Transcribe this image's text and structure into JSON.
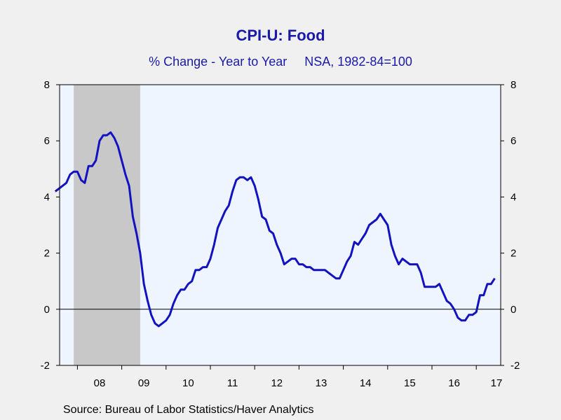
{
  "title": "CPI-U: Food",
  "subtitle": "% Change - Year to Year     NSA, 1982-84=100",
  "source": "Source:  Bureau of Labor Statistics/Haver Analytics",
  "colors": {
    "line": "#1212c0",
    "plot_bg": "#eef5ff",
    "recession": "#c8c8c8",
    "text_title": "#1a1aa8"
  },
  "chart_data": {
    "type": "line",
    "title": "CPI-U: Food",
    "subtitle": "% Change - Year to Year     NSA, 1982-84=100",
    "xlabel": "",
    "ylabel": "",
    "x_tick_labels": [
      "08",
      "09",
      "10",
      "11",
      "12",
      "13",
      "14",
      "15",
      "16",
      "17"
    ],
    "y_ticks": [
      8,
      6,
      4,
      2,
      0,
      -2
    ],
    "ylim": [
      -2,
      8
    ],
    "xlim": [
      2007.5,
      2017.0833
    ],
    "grid": false,
    "zero_line": true,
    "recession_shading": [
      {
        "start": 2007.9167,
        "end": 2009.4167
      }
    ],
    "series": [
      {
        "values": [
          [
            2007.5,
            4.2
          ],
          [
            2007.5833,
            4.3
          ],
          [
            2007.6667,
            4.4
          ],
          [
            2007.75,
            4.5
          ],
          [
            2007.8333,
            4.8
          ],
          [
            2007.9167,
            4.9
          ],
          [
            2008.0,
            4.9
          ],
          [
            2008.0833,
            4.6
          ],
          [
            2008.1667,
            4.5
          ],
          [
            2008.25,
            5.1
          ],
          [
            2008.3333,
            5.1
          ],
          [
            2008.4167,
            5.3
          ],
          [
            2008.5,
            6.0
          ],
          [
            2008.5833,
            6.2
          ],
          [
            2008.6667,
            6.2
          ],
          [
            2008.75,
            6.3
          ],
          [
            2008.8333,
            6.1
          ],
          [
            2008.9167,
            5.8
          ],
          [
            2009.0,
            5.3
          ],
          [
            2009.0833,
            4.8
          ],
          [
            2009.1667,
            4.4
          ],
          [
            2009.25,
            3.3
          ],
          [
            2009.3333,
            2.7
          ],
          [
            2009.4167,
            2.0
          ],
          [
            2009.5,
            0.9
          ],
          [
            2009.5833,
            0.3
          ],
          [
            2009.6667,
            -0.2
          ],
          [
            2009.75,
            -0.5
          ],
          [
            2009.8333,
            -0.6
          ],
          [
            2009.9167,
            -0.5
          ],
          [
            2010.0,
            -0.4
          ],
          [
            2010.0833,
            -0.2
          ],
          [
            2010.1667,
            0.2
          ],
          [
            2010.25,
            0.5
          ],
          [
            2010.3333,
            0.7
          ],
          [
            2010.4167,
            0.7
          ],
          [
            2010.5,
            0.9
          ],
          [
            2010.5833,
            1.0
          ],
          [
            2010.6667,
            1.4
          ],
          [
            2010.75,
            1.4
          ],
          [
            2010.8333,
            1.5
          ],
          [
            2010.9167,
            1.5
          ],
          [
            2011.0,
            1.8
          ],
          [
            2011.0833,
            2.3
          ],
          [
            2011.1667,
            2.9
          ],
          [
            2011.25,
            3.2
          ],
          [
            2011.3333,
            3.5
          ],
          [
            2011.4167,
            3.7
          ],
          [
            2011.5,
            4.2
          ],
          [
            2011.5833,
            4.6
          ],
          [
            2011.6667,
            4.7
          ],
          [
            2011.75,
            4.7
          ],
          [
            2011.8333,
            4.6
          ],
          [
            2011.9167,
            4.7
          ],
          [
            2012.0,
            4.4
          ],
          [
            2012.0833,
            3.9
          ],
          [
            2012.1667,
            3.3
          ],
          [
            2012.25,
            3.2
          ],
          [
            2012.3333,
            2.8
          ],
          [
            2012.4167,
            2.7
          ],
          [
            2012.5,
            2.3
          ],
          [
            2012.5833,
            2.0
          ],
          [
            2012.6667,
            1.6
          ],
          [
            2012.75,
            1.7
          ],
          [
            2012.8333,
            1.8
          ],
          [
            2012.9167,
            1.8
          ],
          [
            2013.0,
            1.6
          ],
          [
            2013.0833,
            1.6
          ],
          [
            2013.1667,
            1.5
          ],
          [
            2013.25,
            1.5
          ],
          [
            2013.3333,
            1.4
          ],
          [
            2013.4167,
            1.4
          ],
          [
            2013.5,
            1.4
          ],
          [
            2013.5833,
            1.4
          ],
          [
            2013.6667,
            1.3
          ],
          [
            2013.75,
            1.2
          ],
          [
            2013.8333,
            1.1
          ],
          [
            2013.9167,
            1.1
          ],
          [
            2014.0,
            1.4
          ],
          [
            2014.0833,
            1.7
          ],
          [
            2014.1667,
            1.9
          ],
          [
            2014.25,
            2.4
          ],
          [
            2014.3333,
            2.3
          ],
          [
            2014.4167,
            2.5
          ],
          [
            2014.5,
            2.7
          ],
          [
            2014.5833,
            3.0
          ],
          [
            2014.6667,
            3.1
          ],
          [
            2014.75,
            3.2
          ],
          [
            2014.8333,
            3.4
          ],
          [
            2014.9167,
            3.2
          ],
          [
            2015.0,
            3.0
          ],
          [
            2015.0833,
            2.3
          ],
          [
            2015.1667,
            1.9
          ],
          [
            2015.25,
            1.6
          ],
          [
            2015.3333,
            1.8
          ],
          [
            2015.4167,
            1.7
          ],
          [
            2015.5,
            1.6
          ],
          [
            2015.5833,
            1.6
          ],
          [
            2015.6667,
            1.6
          ],
          [
            2015.75,
            1.3
          ],
          [
            2015.8333,
            0.8
          ],
          [
            2015.9167,
            0.8
          ],
          [
            2016.0,
            0.8
          ],
          [
            2016.0833,
            0.8
          ],
          [
            2016.1667,
            0.9
          ],
          [
            2016.25,
            0.6
          ],
          [
            2016.3333,
            0.3
          ],
          [
            2016.4167,
            0.2
          ],
          [
            2016.5,
            0.0
          ],
          [
            2016.5833,
            -0.3
          ],
          [
            2016.6667,
            -0.4
          ],
          [
            2016.75,
            -0.4
          ],
          [
            2016.8333,
            -0.2
          ],
          [
            2016.9167,
            -0.2
          ],
          [
            2017.0,
            -0.1
          ],
          [
            2017.0833,
            0.5
          ],
          [
            2017.1667,
            0.5
          ],
          [
            2017.25,
            0.9
          ],
          [
            2017.3333,
            0.9
          ],
          [
            2017.4167,
            1.1
          ]
        ]
      }
    ]
  }
}
